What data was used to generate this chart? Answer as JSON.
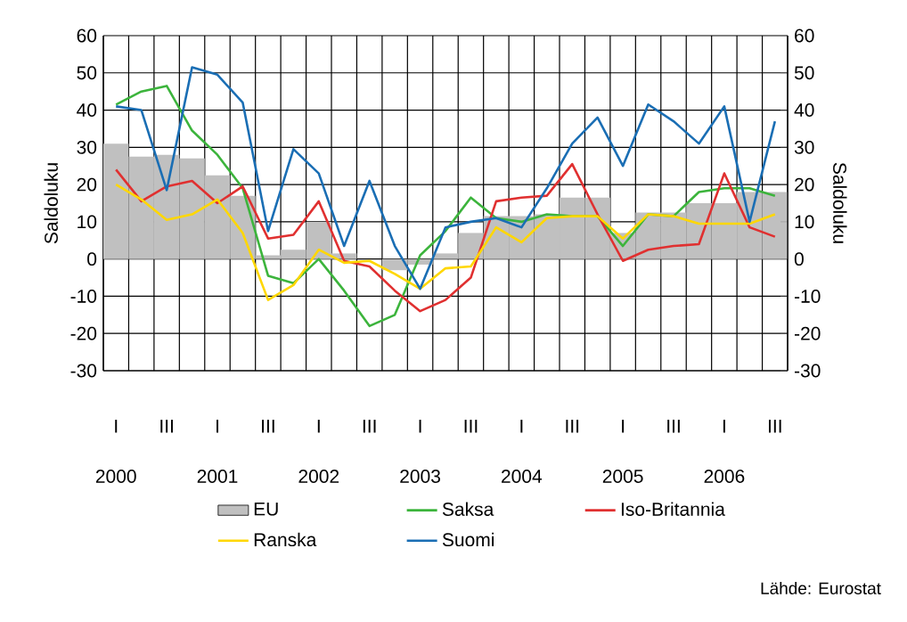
{
  "chart_data": {
    "type": "line",
    "ylabel": "Saldoluku",
    "y2label": "Saldoluku",
    "categories": [
      "I",
      null,
      "III",
      null,
      "I",
      null,
      "III",
      null,
      "I",
      null,
      "III",
      null,
      "I",
      null,
      "III",
      null,
      "I",
      null,
      "III",
      null,
      "I",
      null,
      "III",
      null,
      "I",
      null,
      "III"
    ],
    "ylim": [
      -30,
      60
    ],
    "yticks": [
      -30,
      -20,
      -10,
      0,
      10,
      20,
      30,
      40,
      50,
      60
    ],
    "y2lim": [
      -30,
      60
    ],
    "y2ticks": [
      -30,
      -20,
      -10,
      0,
      10,
      20,
      30,
      40,
      50,
      60
    ],
    "grid": true,
    "legend": "bottom",
    "series": [
      {
        "name": "EU",
        "type": "bar",
        "color": "#c0c0c0",
        "values": [
          31,
          27.5,
          28,
          27,
          22.5,
          17,
          1,
          2.5,
          10,
          1.5,
          null,
          -3,
          -1.5,
          1.5,
          7,
          11.5,
          11.5,
          12,
          16.5,
          16.5,
          7,
          12.5,
          12.5,
          15,
          15,
          18,
          18
        ]
      },
      {
        "name": "Saksa",
        "color": "#3cb43c",
        "values": [
          41.5,
          45,
          46.5,
          34.5,
          28,
          19,
          -4.5,
          -6.5,
          0,
          -8.5,
          -18,
          -15,
          1,
          7.5,
          16.5,
          11,
          10,
          12,
          11.5,
          11.5,
          3.5,
          12,
          11.5,
          18,
          19,
          19,
          17
        ]
      },
      {
        "name": "Iso-Britannia",
        "color": "#e03030",
        "values": [
          24,
          15.5,
          19.5,
          21,
          15,
          19.5,
          5.5,
          6.5,
          15.5,
          -0.5,
          -2,
          -8.5,
          -14,
          -11,
          -5,
          15.5,
          16.5,
          17,
          25.5,
          12,
          -0.5,
          2.5,
          3.5,
          4,
          23,
          8.5,
          6
        ]
      },
      {
        "name": "Ranska",
        "color": "#ffd700",
        "values": [
          20,
          16,
          10.5,
          12,
          16,
          7,
          -11,
          -7,
          2.5,
          -1,
          -0.5,
          -4,
          -8,
          -2.5,
          -2,
          8.5,
          4.5,
          11,
          11.5,
          11.5,
          5.5,
          12,
          11.5,
          9.5,
          9.5,
          9.5,
          12
        ]
      },
      {
        "name": "Suomi",
        "color": "#1a6eb4",
        "values": [
          41,
          40,
          18.5,
          51.5,
          49.5,
          42,
          7.5,
          29.5,
          23,
          3.5,
          21,
          3.5,
          -8,
          8.5,
          10,
          11,
          8.5,
          19,
          31,
          38,
          25,
          41.5,
          37,
          31,
          41,
          10,
          37
        ]
      }
    ],
    "annotations": [
      "2000",
      "2001",
      "2002",
      "2003",
      "2004",
      "2005",
      "2006",
      "Lähde: Eurostat"
    ]
  }
}
